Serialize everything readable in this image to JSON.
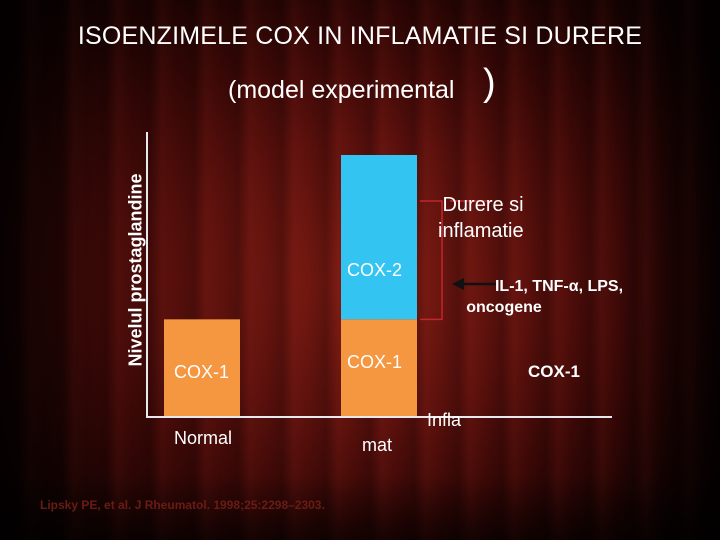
{
  "title": "ISOENZIMELE  COX IN INFLAMATIE SI DURERE",
  "subtitle": "(model experimental",
  "subtitle_paren": ")",
  "ylabel": "Nivelul prostaglandine",
  "citation": "Lipsky PE, et al. J Rheumatol. 1998;25:2298–2303.",
  "chart_data": {
    "type": "bar",
    "stacked": true,
    "categories": [
      "Normal",
      "Inflamat"
    ],
    "category_labels": {
      "normal": "Normal",
      "infla": "Infla",
      "mat": "mat"
    },
    "series": [
      {
        "name": "COX-1",
        "values": [
          1,
          1
        ],
        "color": "#F59640"
      },
      {
        "name": "COX-2",
        "values": [
          0,
          1.7
        ],
        "color": "#33C4F2"
      }
    ],
    "ylim": [
      0,
      3
    ],
    "segment_labels": {
      "cox1_normal": "COX-1",
      "cox1_inflamat": "COX-1",
      "cox2_inflamat": "COX-2",
      "cox1_right": "COX-1"
    },
    "annotations": {
      "durere": "Durere si inflamatie",
      "durere_line1": "Durere si",
      "durere_line2": "inflamatie",
      "inducers_line1": "IL-1, TNF-α, LPS,",
      "inducers_line2": "oncogene"
    },
    "colors": {
      "bracket": "#C0262C",
      "arrow": "#111111",
      "axis": "#E8E8F0"
    }
  }
}
